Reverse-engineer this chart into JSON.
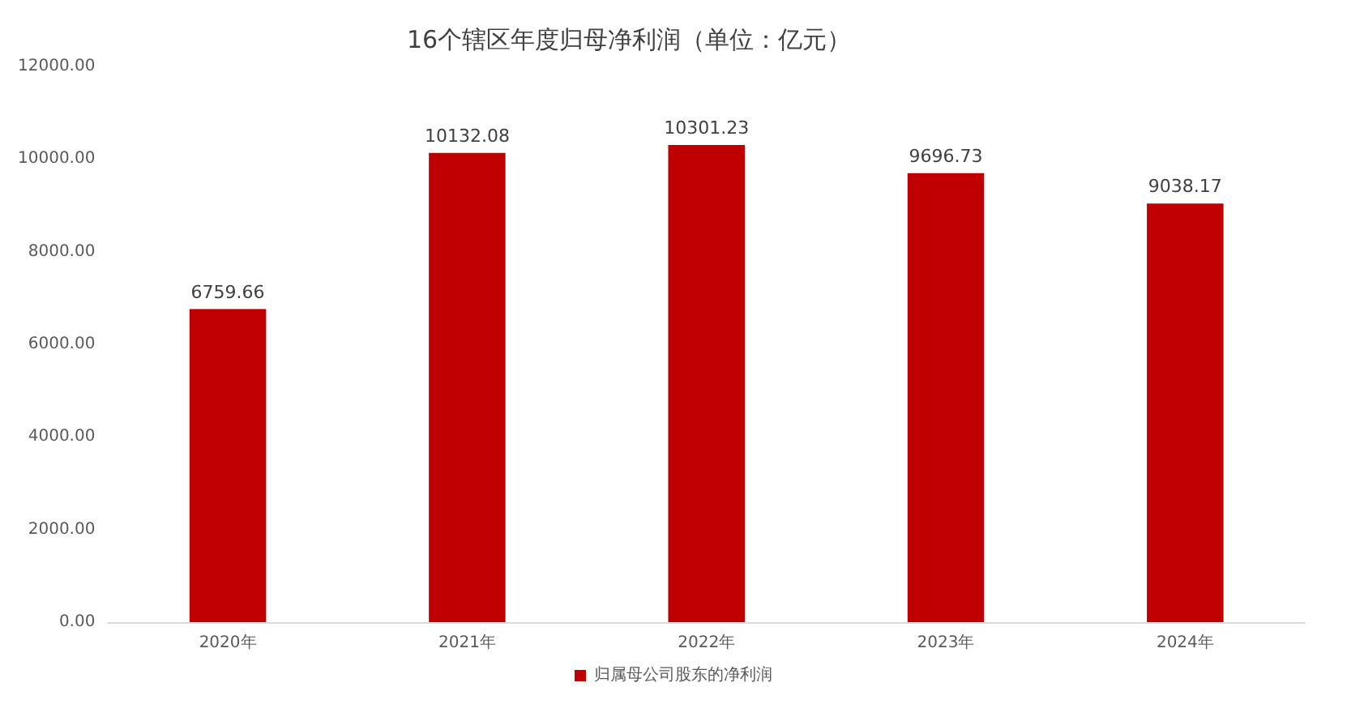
{
  "chart_data": {
    "type": "bar",
    "title": "16个辖区年度归母净利润（单位：亿元）",
    "categories": [
      "2020年",
      "2021年",
      "2022年",
      "2023年",
      "2024年"
    ],
    "series": [
      {
        "name": "归属母公司股东的净利润",
        "color": "#c00000",
        "values": [
          6759.66,
          10132.08,
          10301.23,
          9696.73,
          9038.17
        ]
      }
    ],
    "ylim": [
      0,
      12000
    ],
    "yticks": [
      {
        "value": 0,
        "label": "0.00"
      },
      {
        "value": 2000,
        "label": "2000.00"
      },
      {
        "value": 4000,
        "label": "4000.00"
      },
      {
        "value": 6000,
        "label": "6000.00"
      },
      {
        "value": 8000,
        "label": "8000.00"
      },
      {
        "value": 10000,
        "label": "10000.00"
      },
      {
        "value": 12000,
        "label": "12000.00"
      }
    ],
    "data_labels": true,
    "legend": "bottom",
    "grid": false
  }
}
